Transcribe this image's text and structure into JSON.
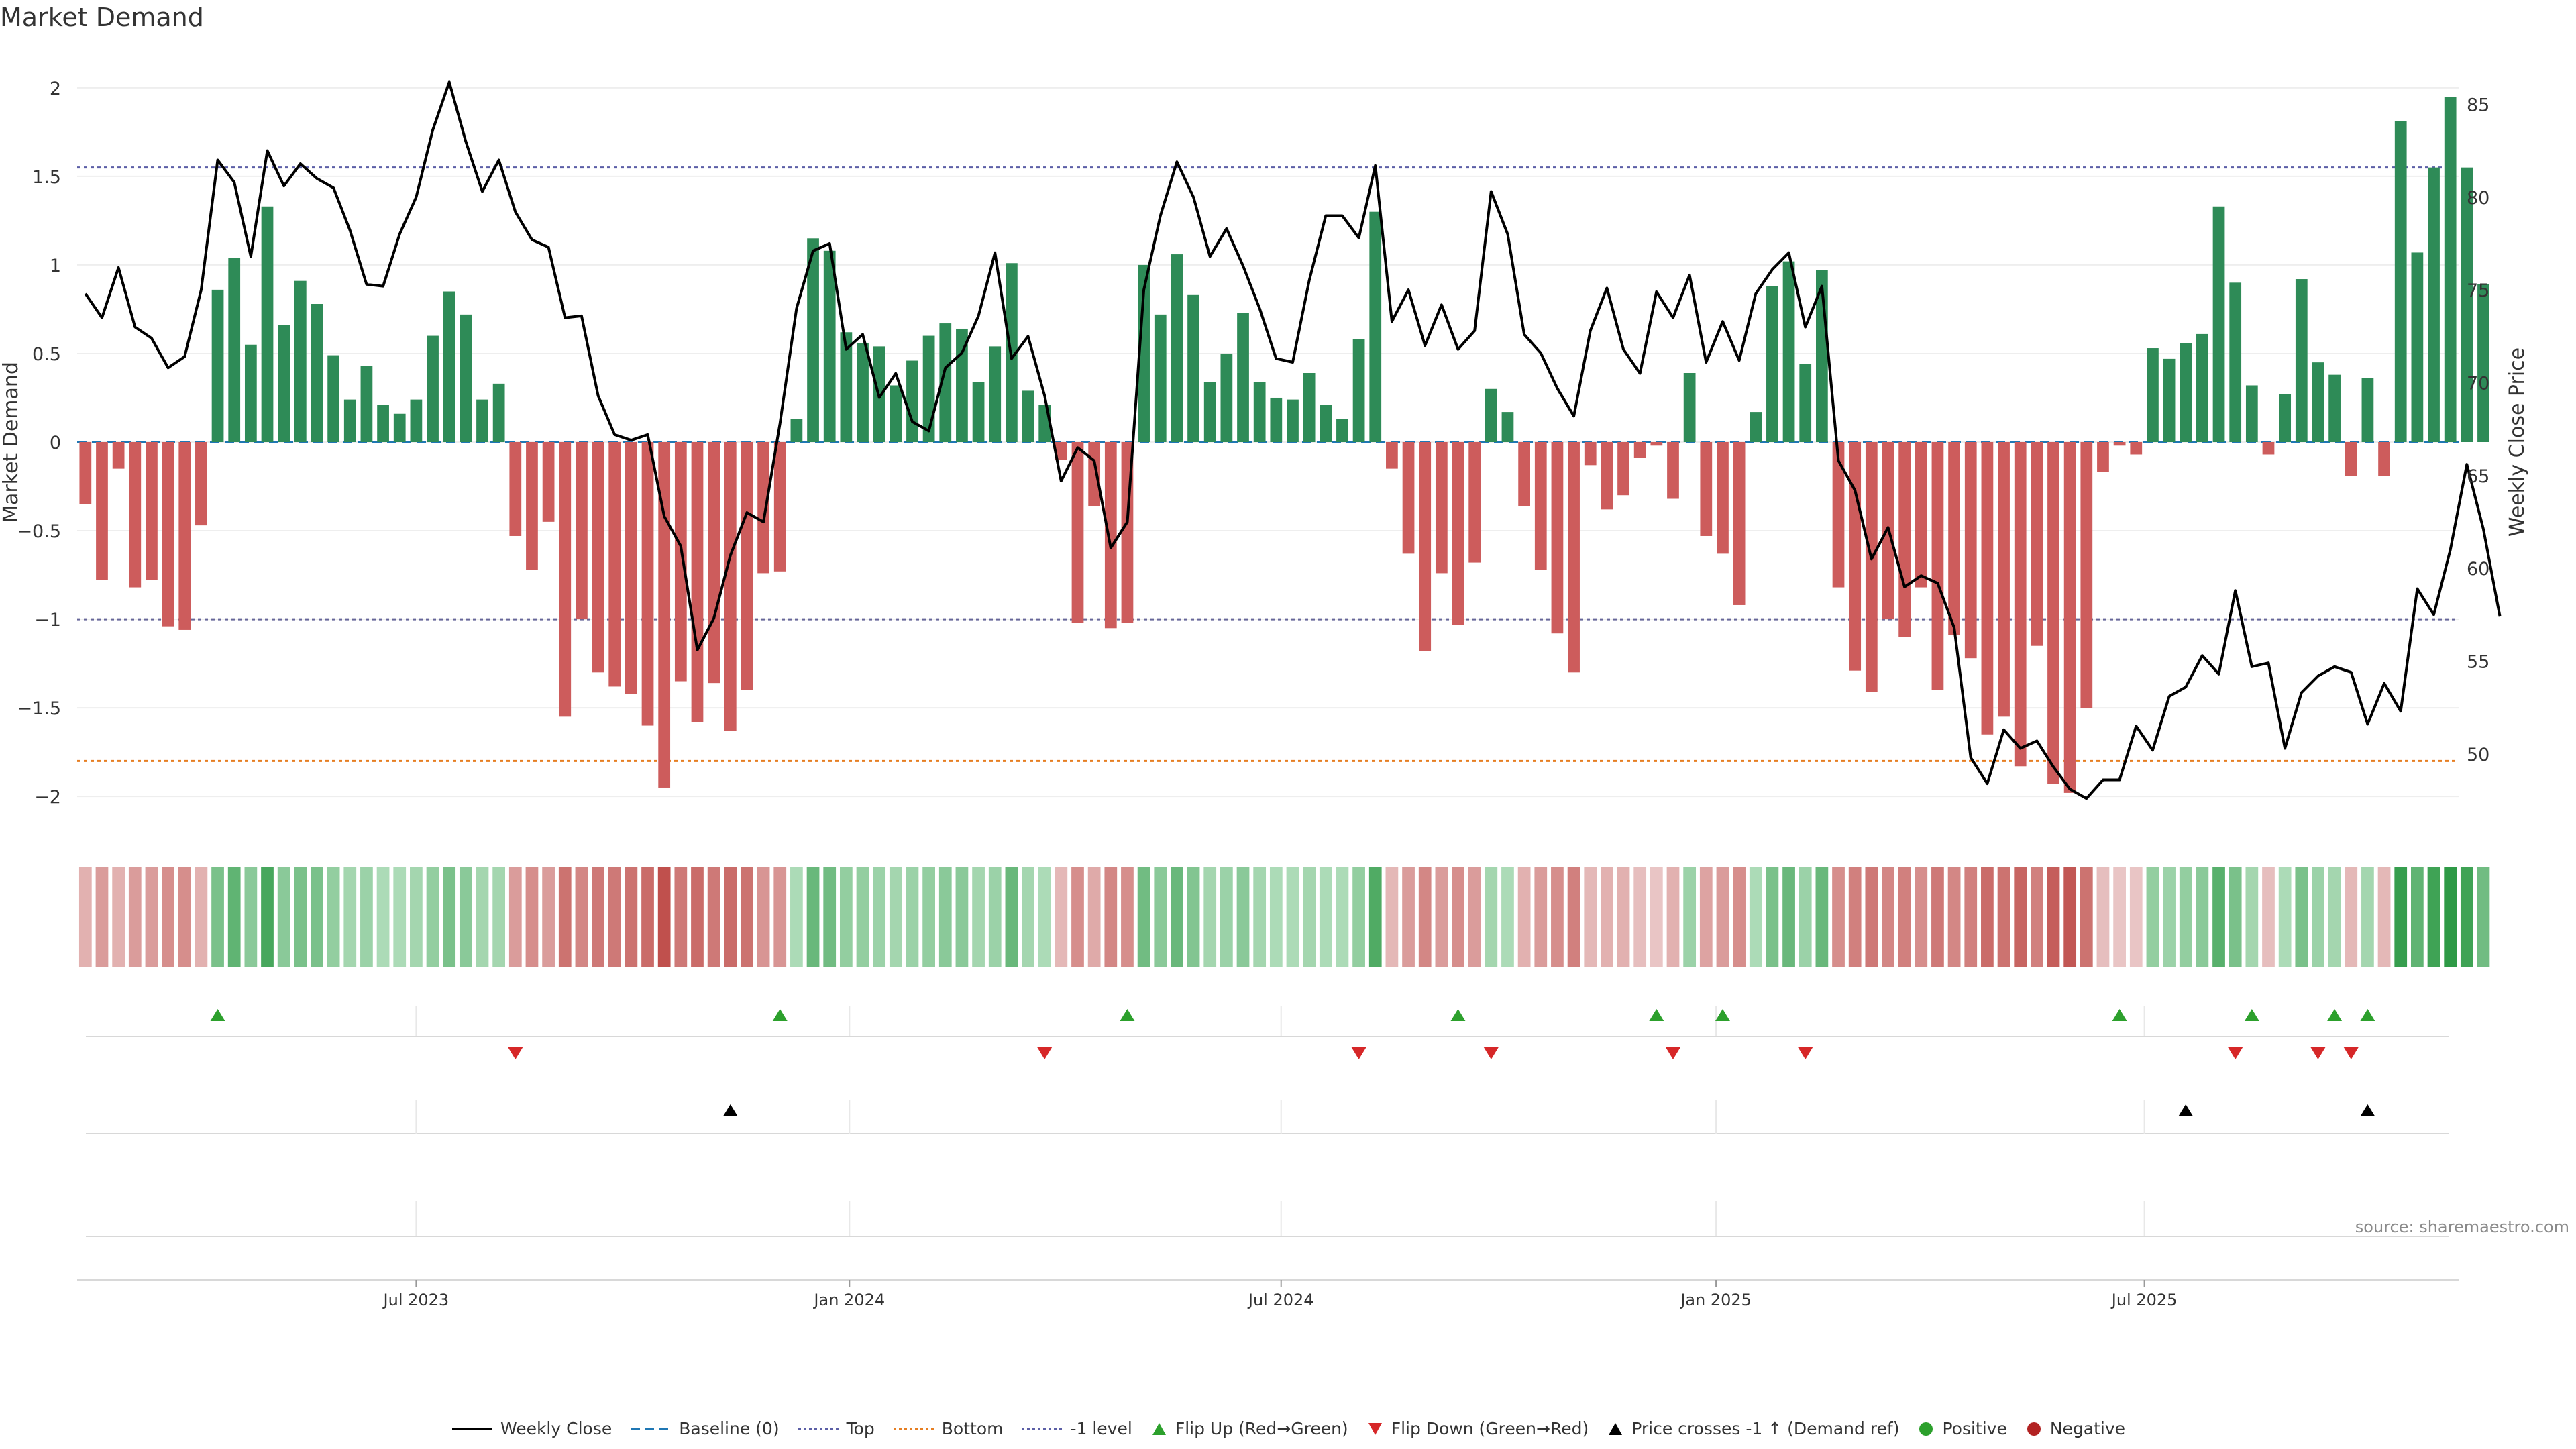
{
  "title": "Market Demand",
  "source": "source: sharemaestro.com",
  "colors": {
    "positive": "#2e8b57",
    "negative": "#cd5c5c",
    "price": "#000000",
    "top": "#5b5ea6",
    "bottom": "#e67e22",
    "baseline": "#1f77b4",
    "grid": "#e8e8e8",
    "flipUp": "#2ca02c",
    "flipDown": "#d62728",
    "crossPos": "#2ca02c",
    "crossNeg": "#b22222"
  },
  "legend": [
    {
      "key": "weekly_close",
      "label": "Weekly Close",
      "symbol": "line-solid",
      "color": "#000000"
    },
    {
      "key": "baseline",
      "label": "Baseline (0)",
      "symbol": "line-dashed",
      "color": "#1f77b4"
    },
    {
      "key": "top",
      "label": "Top",
      "symbol": "line-dotted",
      "color": "#5b5ea6"
    },
    {
      "key": "bottom",
      "label": "Bottom",
      "symbol": "line-dotted",
      "color": "#e67e22"
    },
    {
      "key": "minus1",
      "label": "-1 level",
      "symbol": "line-dotted",
      "color": "#5b5ea6"
    },
    {
      "key": "flip_up",
      "label": "Flip Up (Red→Green)",
      "symbol": "triangle-up",
      "color": "#2ca02c"
    },
    {
      "key": "flip_down",
      "label": "Flip Down (Green→Red)",
      "symbol": "triangle-down",
      "color": "#d62728"
    },
    {
      "key": "cross",
      "label": "Price crosses -1 ↑ (Demand ref)",
      "symbol": "triangle-up",
      "color": "#000000"
    },
    {
      "key": "positive",
      "label": "Positive",
      "symbol": "circle",
      "color": "#2ca02c"
    },
    {
      "key": "negative",
      "label": "Negative",
      "symbol": "circle",
      "color": "#b22222"
    }
  ],
  "chart_data": {
    "type": "bar",
    "title": "Market Demand",
    "ylabel": "Market Demand",
    "y2label": "Weekly Close Price",
    "ylim": [
      -2.2,
      2.2
    ],
    "y2lim": [
      45.8,
      87.8
    ],
    "yticks": [
      2,
      1.5,
      1,
      0.5,
      0,
      -0.5,
      -1,
      -1.5,
      -2
    ],
    "ytick_labels": [
      "2",
      "1.5",
      "1",
      "0.5",
      "0",
      "−0.5",
      "−1",
      "−1.5",
      "−2"
    ],
    "y2ticks": [
      85,
      80,
      75,
      70,
      65,
      60,
      55,
      50
    ],
    "x_range_weeks": [
      0,
      144
    ],
    "xticks": [
      {
        "label": "Jul 2023",
        "week": 20.5
      },
      {
        "label": "Jan 2024",
        "week": 46.7
      },
      {
        "label": "Jul 2024",
        "week": 72.8
      },
      {
        "label": "Jan 2025",
        "week": 99.1
      },
      {
        "label": "Jul 2025",
        "week": 125
      }
    ],
    "levels": {
      "baseline": 0,
      "top": 1.55,
      "bottom": -1.8,
      "minus1": -1
    },
    "demand": [
      -0.35,
      -0.78,
      -0.15,
      -0.82,
      -0.78,
      -1.04,
      -1.06,
      -0.47,
      0.86,
      1.04,
      0.55,
      1.33,
      0.66,
      0.91,
      0.78,
      0.49,
      0.24,
      0.43,
      0.21,
      0.16,
      0.24,
      0.6,
      0.85,
      0.72,
      0.24,
      0.33,
      -0.53,
      -0.72,
      -0.45,
      -1.55,
      -1.0,
      -1.3,
      -1.38,
      -1.42,
      -1.6,
      -1.95,
      -1.35,
      -1.58,
      -1.36,
      -1.63,
      -1.4,
      -0.74,
      -0.73,
      0.13,
      1.15,
      1.08,
      0.62,
      0.56,
      0.54,
      0.32,
      0.46,
      0.6,
      0.67,
      0.64,
      0.34,
      0.54,
      1.01,
      0.29,
      0.21,
      -0.1,
      -1.02,
      -0.36,
      -1.05,
      -1.02,
      1.0,
      0.72,
      1.06,
      0.83,
      0.34,
      0.5,
      0.73,
      0.34,
      0.25,
      0.24,
      0.39,
      0.21,
      0.13,
      0.58,
      1.3,
      -0.15,
      -0.63,
      -1.18,
      -0.74,
      -1.03,
      -0.68,
      0.3,
      0.17,
      -0.36,
      -0.72,
      -1.08,
      -1.3,
      -0.13,
      -0.38,
      -0.3,
      -0.09,
      -0.02,
      -0.32,
      0.39,
      -0.53,
      -0.63,
      -0.92,
      0.17,
      0.88,
      1.02,
      0.44,
      0.97,
      -0.82,
      -1.29,
      -1.41,
      -1.0,
      -1.1,
      -0.82,
      -1.4,
      -1.09,
      -1.22,
      -1.65,
      -1.55,
      -1.83,
      -1.15,
      -1.93,
      -1.98,
      -1.5,
      -0.17,
      -0.02,
      -0.07,
      0.53,
      0.47,
      0.56,
      0.61,
      1.33,
      0.9,
      0.32,
      -0.07,
      0.27,
      0.92,
      0.45,
      0.38,
      -0.19,
      0.36,
      -0.19,
      1.81,
      1.07,
      1.55,
      1.95,
      1.55,
      0.89
    ],
    "price": [
      74.8,
      73.5,
      76.2,
      73.0,
      72.4,
      70.8,
      71.4,
      75.0,
      82.0,
      80.8,
      76.8,
      82.5,
      80.6,
      81.8,
      81.0,
      80.5,
      78.2,
      75.3,
      75.2,
      78.0,
      80.0,
      83.6,
      86.2,
      83.0,
      80.3,
      82.0,
      79.2,
      77.7,
      77.3,
      73.5,
      73.6,
      69.3,
      67.2,
      66.9,
      67.2,
      62.8,
      61.2,
      55.6,
      57.3,
      60.7,
      63.0,
      62.5,
      67.8,
      74.0,
      77.1,
      77.5,
      71.8,
      72.6,
      69.2,
      70.5,
      67.9,
      67.4,
      70.8,
      71.6,
      73.6,
      77.0,
      71.3,
      72.5,
      69.3,
      64.7,
      66.5,
      65.8,
      61.1,
      62.5,
      75.0,
      79.0,
      81.9,
      80.0,
      76.8,
      78.3,
      76.3,
      74.0,
      71.3,
      71.1,
      75.5,
      79.0,
      79.0,
      77.8,
      81.7,
      73.3,
      75.0,
      72.0,
      74.2,
      71.8,
      72.8,
      80.3,
      78.0,
      72.6,
      71.6,
      69.7,
      68.2,
      72.8,
      75.1,
      71.8,
      70.5,
      74.9,
      73.5,
      75.8,
      71.1,
      73.3,
      71.2,
      74.8,
      76.1,
      77.0,
      73.0,
      75.2,
      65.8,
      64.2,
      60.5,
      62.2,
      59.0,
      59.6,
      59.2,
      56.8,
      49.8,
      48.4,
      51.3,
      50.3,
      50.7,
      49.3,
      48.1,
      47.6,
      48.6,
      48.6,
      51.5,
      50.2,
      53.1,
      53.6,
      55.3,
      54.3,
      58.8,
      54.7,
      54.9,
      50.3,
      53.3,
      54.2,
      54.7,
      54.4,
      51.6,
      53.8,
      52.3,
      58.9,
      57.5,
      61.0,
      65.6,
      62.1,
      57.4
    ],
    "strip_intensity": [
      0.3,
      0.45,
      0.3,
      0.45,
      0.45,
      0.55,
      0.55,
      0.3,
      0.55,
      0.7,
      0.45,
      0.85,
      0.45,
      0.55,
      0.55,
      0.4,
      0.3,
      0.35,
      0.25,
      0.25,
      0.3,
      0.4,
      0.55,
      0.45,
      0.3,
      0.3,
      0.45,
      0.55,
      0.45,
      0.75,
      0.6,
      0.7,
      0.7,
      0.75,
      0.8,
      1.0,
      0.7,
      0.8,
      0.7,
      0.8,
      0.75,
      0.5,
      0.5,
      0.25,
      0.65,
      0.6,
      0.4,
      0.4,
      0.35,
      0.3,
      0.35,
      0.4,
      0.45,
      0.45,
      0.3,
      0.35,
      0.65,
      0.3,
      0.25,
      0.25,
      0.55,
      0.35,
      0.6,
      0.55,
      0.6,
      0.45,
      0.65,
      0.5,
      0.3,
      0.35,
      0.45,
      0.3,
      0.25,
      0.25,
      0.3,
      0.25,
      0.25,
      0.4,
      0.8,
      0.25,
      0.45,
      0.6,
      0.45,
      0.55,
      0.45,
      0.3,
      0.25,
      0.3,
      0.45,
      0.55,
      0.65,
      0.25,
      0.3,
      0.3,
      0.2,
      0.15,
      0.3,
      0.35,
      0.4,
      0.45,
      0.55,
      0.25,
      0.55,
      0.65,
      0.35,
      0.65,
      0.55,
      0.65,
      0.7,
      0.6,
      0.65,
      0.55,
      0.7,
      0.6,
      0.65,
      0.8,
      0.75,
      0.85,
      0.65,
      0.9,
      0.95,
      0.75,
      0.2,
      0.15,
      0.15,
      0.4,
      0.35,
      0.4,
      0.45,
      0.75,
      0.55,
      0.3,
      0.2,
      0.25,
      0.55,
      0.35,
      0.3,
      0.25,
      0.3,
      0.25,
      0.95,
      0.7,
      0.9,
      1.0,
      0.9,
      0.6
    ],
    "flip_up_weeks": [
      8,
      42,
      63,
      83,
      95,
      99,
      123,
      131,
      136,
      138
    ],
    "flip_down_weeks": [
      26,
      58,
      77,
      85,
      96,
      104,
      130,
      135,
      137
    ],
    "cross_weeks": [
      39,
      127,
      138
    ]
  }
}
